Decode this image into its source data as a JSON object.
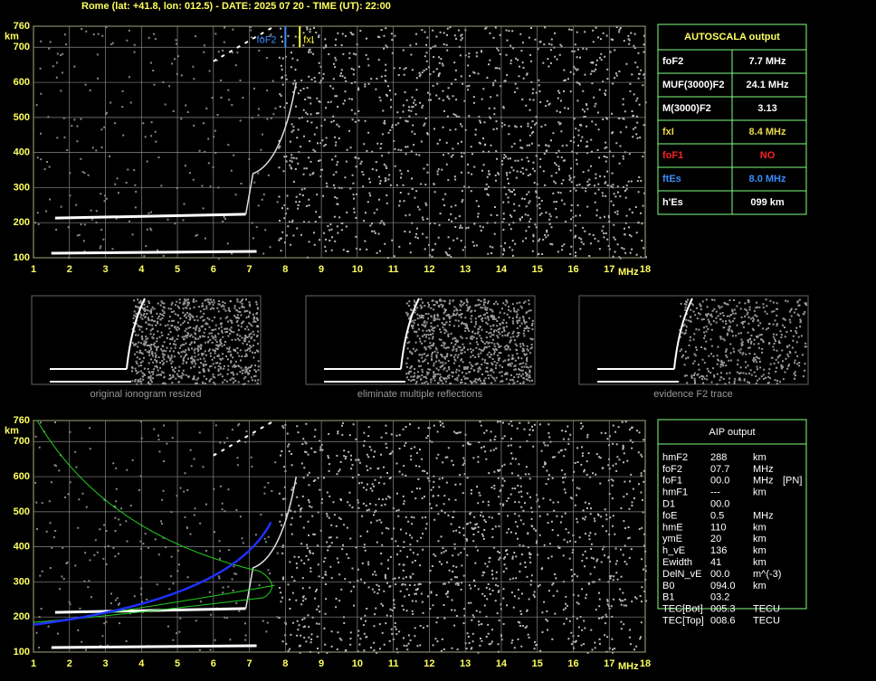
{
  "header": {
    "title": "Rome (lat: +41.8, lon: 012.5) - DATE: 2025 07 20 - TIME (UT): 22:00"
  },
  "axes": {
    "y_unit": "km",
    "x_unit": "MHz",
    "xlim": [
      1,
      18
    ],
    "ylim": [
      100,
      760
    ],
    "xticks": [
      1,
      2,
      3,
      4,
      5,
      6,
      7,
      8,
      9,
      10,
      11,
      12,
      13,
      14,
      15,
      16,
      17,
      18
    ],
    "yticks": [
      100,
      200,
      300,
      400,
      500,
      600,
      700,
      760
    ]
  },
  "markers": {
    "foF2": "foF2",
    "fxI": "fxI"
  },
  "autoscala": {
    "title": "AUTOSCALA output",
    "rows": [
      {
        "name": "foF2",
        "value": "7.7 MHz",
        "color": "#ffffff"
      },
      {
        "name": "MUF(3000)F2",
        "value": "24.1 MHz",
        "color": "#ffffff"
      },
      {
        "name": "M(3000)F2",
        "value": "3.13",
        "color": "#ffffff"
      },
      {
        "name": "fxI",
        "value": "8.4 MHz",
        "color": "#e8d84a"
      },
      {
        "name": "foF1",
        "value": "NO",
        "color": "#ff2020"
      },
      {
        "name": "ftEs",
        "value": "8.0 MHz",
        "color": "#3a8cff"
      },
      {
        "name": "h'Es",
        "value": "099    km",
        "color": "#ffffff"
      }
    ]
  },
  "thumbnails": [
    "original ionogram resized",
    "eliminate multiple reflections",
    "evidence F2 trace"
  ],
  "aip": {
    "title": "AIP output",
    "rows": [
      [
        "hmF2",
        "288",
        "km"
      ],
      [
        "foF2",
        "07.7",
        "MHz"
      ],
      [
        "foF1",
        "00.0",
        "MHz",
        "[PN]"
      ],
      [
        "hmF1",
        "---",
        "km"
      ],
      [
        "D1",
        "00.0"
      ],
      [
        "foE",
        "0.5",
        "MHz"
      ],
      [
        "hmE",
        "110",
        "km"
      ],
      [
        "ymE",
        "20",
        "km"
      ],
      [
        "h_vE",
        "136",
        "km"
      ],
      [
        "Ewidth",
        "41",
        "km"
      ],
      [
        "DelN_vE",
        "00.0",
        "m^(-3)"
      ],
      [
        "B0",
        "094.0",
        "km"
      ],
      [
        "B1",
        "03.2"
      ],
      [
        "TEC[Bot]",
        "005.3",
        "TECU"
      ],
      [
        "TEC[Top]",
        "008.6",
        "TECU"
      ]
    ]
  }
}
